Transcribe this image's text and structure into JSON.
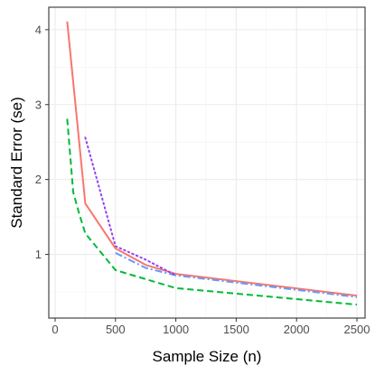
{
  "chart_data": {
    "type": "line",
    "title": "",
    "xlabel": "Sample Size (n)",
    "ylabel": "Standard Error (se)",
    "xlim": [
      0,
      2500
    ],
    "ylim": [
      0.15,
      4.3
    ],
    "x_ticks": [
      0,
      500,
      1000,
      1500,
      2000,
      2500
    ],
    "y_ticks": [
      1,
      2,
      3,
      4
    ],
    "grid": true,
    "legend": "none",
    "series": [
      {
        "color": "#F8766D",
        "dash": "solid",
        "x": [
          100,
          250,
          500,
          750,
          1000,
          2500
        ],
        "y": [
          4.11,
          1.68,
          1.08,
          0.86,
          0.74,
          0.45
        ]
      },
      {
        "color": "#00BA38",
        "dash": "dashed",
        "x": [
          100,
          150,
          200,
          250,
          500,
          1000,
          2500
        ],
        "y": [
          2.81,
          1.83,
          1.54,
          1.28,
          0.79,
          0.55,
          0.33
        ]
      },
      {
        "color": "#619CFF",
        "dash": "dashdot",
        "x": [
          500,
          750,
          1000,
          2500
        ],
        "y": [
          1.02,
          0.82,
          0.72,
          0.43
        ]
      },
      {
        "color": "#9542F5",
        "dash": "dotted",
        "x": [
          250,
          500,
          750,
          1000
        ],
        "y": [
          2.56,
          1.11,
          0.93,
          0.72
        ]
      }
    ]
  }
}
